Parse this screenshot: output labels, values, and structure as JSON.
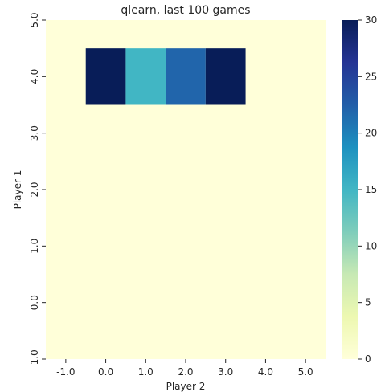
{
  "chart_data": {
    "type": "heatmap",
    "title": "qlearn, last 100 games",
    "xlabel": "Player 2",
    "ylabel": "Player 1",
    "x_ticks": [
      "-1.0",
      "0.0",
      "1.0",
      "2.0",
      "3.0",
      "4.0",
      "5.0"
    ],
    "y_ticks": [
      "-1.0",
      "0.0",
      "1.0",
      "2.0",
      "3.0",
      "4.0",
      "5.0"
    ],
    "xlim": [
      -1.5,
      5.5
    ],
    "ylim": [
      -1.0,
      5.0
    ],
    "cells": [
      {
        "x": 0,
        "y": 4,
        "value": 30
      },
      {
        "x": 1,
        "y": 4,
        "value": 15
      },
      {
        "x": 2,
        "y": 4,
        "value": 22
      },
      {
        "x": 3,
        "y": 4,
        "value": 30
      }
    ],
    "default_value": 0,
    "colorbar": {
      "min": 0,
      "max": 30,
      "ticks": [
        "0",
        "5",
        "10",
        "15",
        "20",
        "25",
        "30"
      ],
      "colormap": "YlGnBu"
    },
    "grid": false,
    "legend": "colorbar-right"
  }
}
